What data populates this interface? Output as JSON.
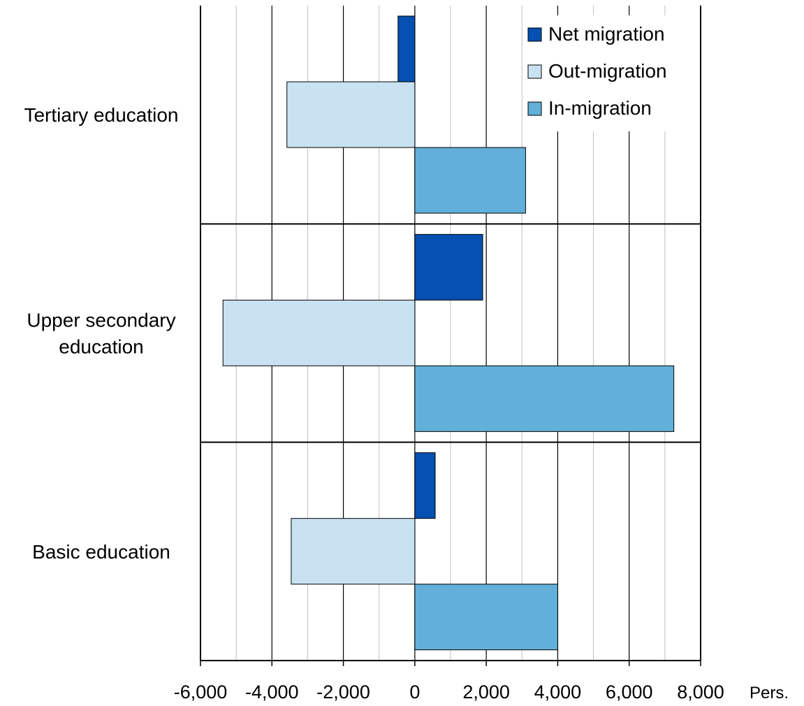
{
  "chart_data": {
    "type": "bar",
    "orientation": "horizontal",
    "categories": [
      "Tertiary education",
      "Upper secondary education",
      "Basic education"
    ],
    "category_label_lines": [
      [
        "Tertiary education"
      ],
      [
        "Upper secondary",
        "education"
      ],
      [
        "Basic education"
      ]
    ],
    "series": [
      {
        "name": "Net migration",
        "values": [
          -470,
          1900,
          570
        ],
        "color": "#0550b0"
      },
      {
        "name": "Out-migration",
        "values": [
          -3580,
          -5370,
          -3460
        ],
        "color": "#c8e2f2"
      },
      {
        "name": "In-migration",
        "values": [
          3100,
          7250,
          4000
        ],
        "color": "#62afd9"
      }
    ],
    "xlim": [
      -6000,
      8000
    ],
    "xticks": [
      -6000,
      -4000,
      -2000,
      0,
      2000,
      4000,
      6000,
      8000
    ],
    "xtick_labels": [
      "-6,000",
      "-4,000",
      "-2,000",
      "0",
      "2,000",
      "4,000",
      "6,000",
      "8,000"
    ],
    "x_unit_label": "Pers.",
    "title": "",
    "xlabel": "",
    "ylabel": "",
    "grid": "vertical",
    "legend_position": "top-right"
  }
}
